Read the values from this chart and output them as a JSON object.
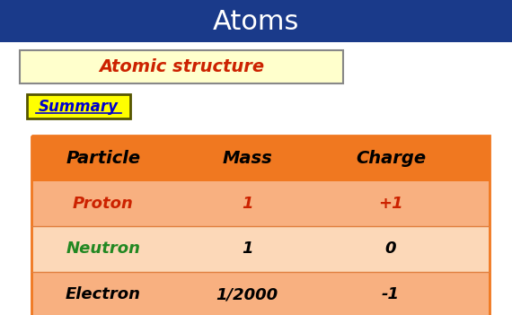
{
  "title": "Atoms",
  "title_bg": "#1a3a8a",
  "title_color": "#ffffff",
  "title_fontsize": 22,
  "subtitle": "Atomic structure",
  "subtitle_bg": "#ffffcc",
  "subtitle_color": "#cc2200",
  "summary_text": "Summary",
  "summary_bg": "#ffff00",
  "summary_color": "#0000cc",
  "table_header_bg": "#f07820",
  "table_row1_bg": "#f8b080",
  "table_row2_bg": "#fcd8b8",
  "table_row3_bg": "#f8b080",
  "table_header_color": "#000000",
  "table_headers": [
    "Particle",
    "Mass",
    "Charge"
  ],
  "table_rows": [
    [
      "Proton",
      "1",
      "+1"
    ],
    [
      "Neutron",
      "1",
      "0"
    ],
    [
      "Electron",
      "1/2000",
      "-1"
    ]
  ],
  "particle_colors": [
    "#cc2200",
    "#228822",
    "#000000"
  ],
  "mass_charge_colors": [
    "#cc2200",
    "#000000",
    "#000000"
  ],
  "row_bgs": [
    "#f8b080",
    "#fcd8b8",
    "#f8b080"
  ],
  "bg_color": "#ffffff"
}
